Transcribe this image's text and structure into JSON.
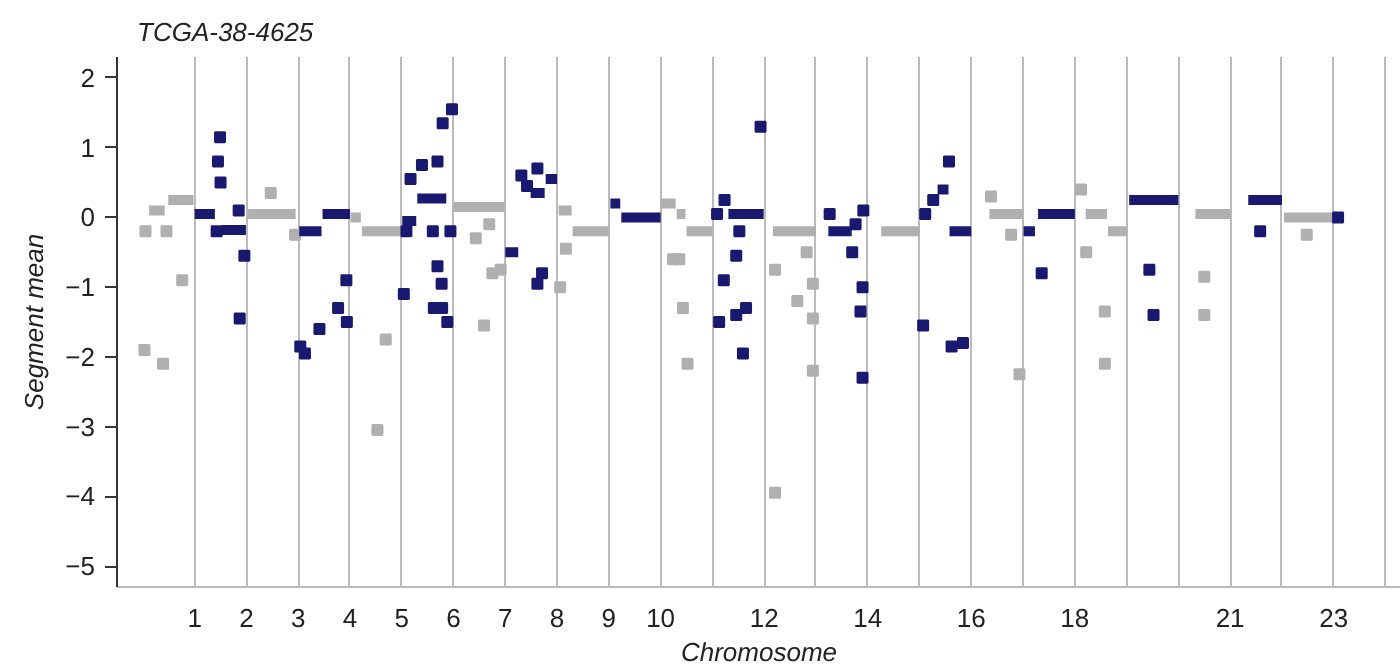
{
  "chart_data": {
    "type": "line",
    "title": "TCGA-38-4625",
    "xlabel": "Chromosome",
    "ylabel": "Segment mean",
    "xlim": [
      -0.5,
      24.3
    ],
    "ylim": [
      -5.3,
      2.3
    ],
    "xticks": [
      1,
      2,
      3,
      4,
      5,
      6,
      7,
      8,
      9,
      10,
      {
        "value": 11,
        "label": null
      },
      12,
      {
        "value": 13,
        "label": null
      },
      14,
      {
        "value": 15,
        "label": null
      },
      16,
      {
        "value": 17,
        "label": null
      },
      18,
      {
        "value": 19,
        "label": null
      },
      {
        "value": 20,
        "label": null
      },
      21,
      {
        "value": 22,
        "label": null
      },
      23,
      {
        "value": 24,
        "label": null
      }
    ],
    "yticks": [
      -5,
      -4,
      -3,
      -2,
      -1,
      0,
      1,
      2
    ],
    "grid": "x",
    "marker": "none",
    "line_style": "solid",
    "series": [
      {
        "color": "#b0b0b0",
        "x": [
          0.12,
          0.42,
          null,
          0.49,
          0.98,
          null,
          2.01,
          2.95,
          null,
          4.01,
          4.21,
          null,
          4.23,
          4.98,
          null,
          6.0,
          6.99,
          null,
          8.03,
          8.28,
          null,
          8.3,
          9.0,
          null,
          10.0,
          10.29,
          null,
          10.31,
          10.48,
          null,
          10.5,
          11.0,
          null,
          12.17,
          13.0,
          null,
          14.26,
          15.0,
          null,
          16.35,
          17.0,
          null,
          18.21,
          18.62,
          null,
          18.64,
          19.0,
          null,
          20.33,
          21.0,
          null,
          22.04,
          23.0
        ],
        "values": [
          0.1,
          0.1,
          null,
          0.25,
          0.25,
          null,
          0.05,
          0.05,
          null,
          0.0,
          0.0,
          null,
          -0.2,
          -0.2,
          null,
          0.15,
          0.15,
          null,
          0.1,
          0.1,
          null,
          -0.2,
          -0.2,
          null,
          0.2,
          0.2,
          null,
          0.05,
          0.05,
          null,
          -0.2,
          -0.2,
          null,
          -0.2,
          -0.2,
          null,
          -0.2,
          -0.2,
          null,
          0.05,
          0.05,
          null,
          0.05,
          0.05,
          null,
          -0.2,
          -0.2,
          null,
          0.05,
          0.05,
          null,
          0.0,
          0.0
        ]
      },
      {
        "type": "scatter",
        "marker": "square",
        "color": "#b0b0b0",
        "x": [
          0.05,
          0.455,
          0.03,
          0.39,
          0.76,
          2.47,
          2.94,
          4.53,
          4.69,
          6.43,
          6.59,
          6.75,
          6.69,
          6.91,
          8.06,
          8.17,
          10.24,
          10.36,
          10.43,
          10.52,
          12.21,
          12.21,
          12.64,
          12.82,
          12.94,
          12.94,
          12.94,
          16.38,
          16.77,
          16.93,
          18.12,
          18.22,
          18.58,
          18.58,
          20.5,
          20.5,
          22.48
        ],
        "values": [
          -0.2,
          -0.2,
          -1.9,
          -2.1,
          -0.9,
          0.35,
          -0.25,
          -3.05,
          -1.75,
          -0.3,
          -1.55,
          -0.8,
          -0.1,
          -0.75,
          -1.0,
          -0.45,
          -0.6,
          -0.6,
          -1.3,
          -2.1,
          -0.75,
          -3.95,
          -1.2,
          -0.5,
          -0.95,
          -1.45,
          -2.2,
          0.3,
          -0.25,
          -2.25,
          0.4,
          -0.5,
          -1.35,
          -2.1,
          -0.85,
          -1.4,
          -0.25
        ]
      },
      {
        "color": "#191970",
        "x": [
          1.0,
          1.39,
          null,
          1.52,
          1.99,
          null,
          3.02,
          3.45,
          null,
          3.47,
          4.0,
          null,
          5.01,
          5.28,
          null,
          5.3,
          5.86,
          null,
          7.0,
          7.25,
          null,
          7.49,
          7.76,
          null,
          7.78,
          8.0,
          null,
          9.03,
          9.22,
          null,
          9.24,
          10.0,
          null,
          11.31,
          11.99,
          null,
          13.24,
          13.69,
          null,
          15.35,
          15.56,
          null,
          15.58,
          16.0,
          null,
          17.01,
          17.23,
          null,
          17.29,
          18.0,
          null,
          19.05,
          20.0,
          null,
          21.35,
          22.0
        ],
        "values": [
          0.05,
          0.05,
          null,
          -0.18,
          -0.18,
          null,
          -0.2,
          -0.2,
          null,
          0.05,
          0.05,
          null,
          -0.05,
          -0.05,
          null,
          0.27,
          0.27,
          null,
          -0.5,
          -0.5,
          null,
          0.35,
          0.35,
          null,
          0.55,
          0.55,
          null,
          0.2,
          0.2,
          null,
          0.0,
          0.0,
          null,
          0.05,
          0.05,
          null,
          -0.2,
          -0.2,
          null,
          0.4,
          0.4,
          null,
          -0.2,
          -0.2,
          null,
          -0.2,
          -0.2,
          null,
          0.05,
          0.05,
          null,
          0.25,
          0.25,
          null,
          0.25,
          0.25
        ]
      },
      {
        "type": "scatter",
        "marker": "square",
        "color": "#191970",
        "x": [
          1.425,
          1.45,
          1.49,
          1.5,
          1.85,
          1.87,
          1.96,
          3.04,
          3.13,
          3.41,
          3.77,
          3.93,
          3.94,
          5.04,
          5.09,
          5.17,
          5.39,
          5.6,
          5.62,
          5.69,
          5.69,
          5.77,
          5.78,
          5.79,
          5.88,
          5.94,
          5.97,
          7.31,
          7.42,
          7.62,
          7.71,
          7.62,
          11.09,
          11.235,
          11.52,
          11.13,
          11.22,
          11.46,
          11.46,
          11.59,
          11.65,
          11.93,
          13.265,
          13.765,
          13.915,
          13.7,
          13.9,
          13.86,
          13.9,
          15.11,
          15.265,
          15.57,
          15.07,
          15.62,
          15.84,
          17.36,
          19.44,
          19.52,
          21.58,
          23.085
        ],
        "values": [
          -0.2,
          0.8,
          1.15,
          0.5,
          0.1,
          -1.45,
          -0.55,
          -1.85,
          -1.95,
          -1.6,
          -1.3,
          -0.9,
          -1.5,
          -1.1,
          -0.2,
          0.55,
          0.75,
          -0.2,
          -1.3,
          0.8,
          -0.7,
          -0.95,
          -1.3,
          1.35,
          -1.5,
          -0.2,
          1.55,
          0.6,
          0.45,
          -0.95,
          -0.8,
          0.7,
          0.05,
          0.25,
          -0.2,
          -1.5,
          -0.9,
          -0.55,
          -1.4,
          -1.95,
          -1.3,
          1.3,
          0.05,
          -0.1,
          0.1,
          -0.5,
          -1.0,
          -1.35,
          -2.3,
          0.05,
          0.25,
          0.8,
          -1.55,
          -1.85,
          -1.8,
          -0.8,
          -0.75,
          -1.4,
          -0.2,
          0.0
        ]
      }
    ]
  }
}
